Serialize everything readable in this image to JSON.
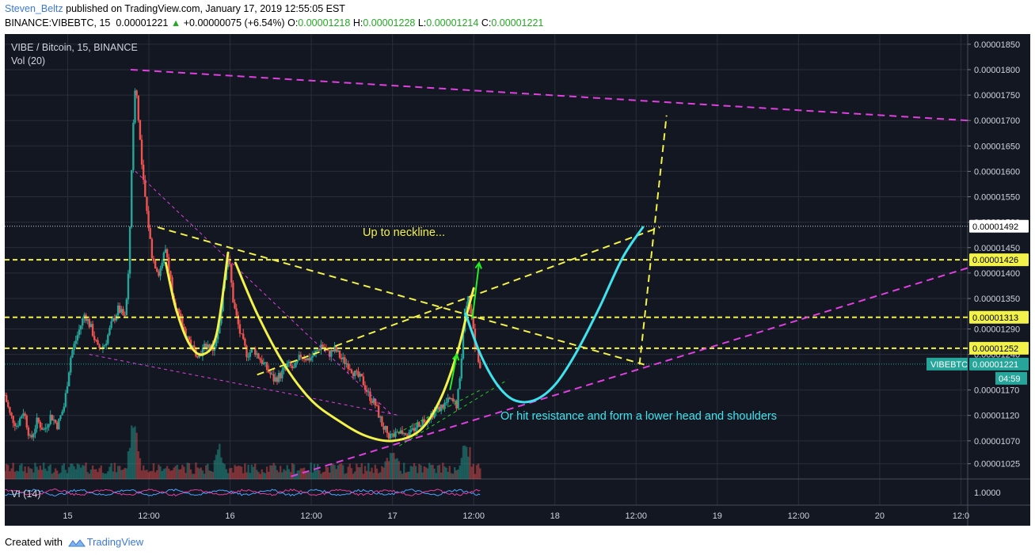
{
  "header": {
    "author": "Steven_Beltz",
    "published_text": "published on TradingView.com, January 17, 2019 12:55:05 EST"
  },
  "quote": {
    "symbol": "BINANCE:VIBEBTC, 15",
    "last": "0.00001221",
    "arrow": "▲",
    "change": "+0.00000075 (+6.54%)",
    "o_label": "O:",
    "o": "0.00001218",
    "h_label": "H:",
    "h": "0.00001228",
    "l_label": "L:",
    "l": "0.00001214",
    "c_label": "C:",
    "c": "0.00001221"
  },
  "legend": {
    "symbol_line": "VIBE / Bitcoin, 15, BINANCE",
    "volume": "Vol (20)",
    "indicator": "VI (14)",
    "indicator_value": "1.0000"
  },
  "annotations": {
    "neckline": "Up to neckline...",
    "resistance": "Or hit resistance and form a lower head and shoulders"
  },
  "footer": {
    "created_with": "Created with",
    "brand": "TradingView"
  },
  "colors": {
    "background": "#131722",
    "grid": "#2a2e39",
    "up": "#26a69a",
    "down": "#ef5350",
    "yellow": "#f2f24a",
    "magenta": "#e040e0",
    "cyan": "#3fe3ee",
    "green_arrow": "#22ee22"
  },
  "chart_data": {
    "type": "candlestick",
    "price_axis": {
      "range": [
        9.95e-06,
        1.87e-05
      ],
      "ticks": [
        "0.00001850",
        "0.00001800",
        "0.00001750",
        "0.00001700",
        "0.00001650",
        "0.00001600",
        "0.00001550",
        "0.00001500",
        "0.00001450",
        "0.00001400",
        "0.00001350",
        "0.00001290",
        "0.00001240",
        "0.00001170",
        "0.00001120",
        "0.00001070",
        "0.00001025"
      ],
      "tick_values": [
        1.85e-05,
        1.8e-05,
        1.75e-05,
        1.7e-05,
        1.65e-05,
        1.6e-05,
        1.55e-05,
        1.5e-05,
        1.45e-05,
        1.4e-05,
        1.35e-05,
        1.29e-05,
        1.24e-05,
        1.17e-05,
        1.12e-05,
        1.07e-05,
        1.025e-05
      ]
    },
    "time_axis": {
      "ticks": [
        "15",
        "12:00",
        "16",
        "12:00",
        "17",
        "12:00",
        "18",
        "12:00",
        "19",
        "12:00",
        "20",
        "12:0"
      ],
      "tick_times": [
        0,
        12,
        24,
        36,
        48,
        60,
        72,
        84,
        96,
        108,
        120,
        132
      ],
      "range": [
        -9.3,
        133
      ]
    },
    "price_labels": [
      {
        "text": "0.00001492",
        "value": 1.492e-05,
        "style": "white"
      },
      {
        "text": "0.00001426",
        "value": 1.426e-05,
        "style": "yellow"
      },
      {
        "text": "0.00001313",
        "value": 1.313e-05,
        "style": "yellow"
      },
      {
        "text": "0.00001252",
        "value": 1.252e-05,
        "style": "yellow"
      },
      {
        "text": "0.00001221",
        "value": 1.221e-05,
        "style": "teal",
        "tag": "VIBEBTC",
        "countdown": "04:59"
      }
    ],
    "horizontal_lines": [
      {
        "value": 1.492e-05,
        "color": "#d1d4dc",
        "dash": "dotted"
      },
      {
        "value": 1.426e-05,
        "color": "#f2f24a",
        "dash": "dashed"
      },
      {
        "value": 1.313e-05,
        "color": "#f2f24a",
        "dash": "dashed"
      },
      {
        "value": 1.252e-05,
        "color": "#f2f24a",
        "dash": "dashed"
      },
      {
        "value": 1.221e-05,
        "color": "#26a69a",
        "dash": "dotted"
      }
    ],
    "price_path": [
      [
        -9.3,
        1.16e-05
      ],
      [
        -8.5,
        1.12e-05
      ],
      [
        -7.5,
        1.1e-05
      ],
      [
        -6.5,
        1.13e-05
      ],
      [
        -5.5,
        1.07e-05
      ],
      [
        -4.5,
        1.11e-05
      ],
      [
        -3.5,
        1.09e-05
      ],
      [
        -2.5,
        1.12e-05
      ],
      [
        -1.5,
        1.1e-05
      ],
      [
        -0.5,
        1.14e-05
      ],
      [
        0.5,
        1.24e-05
      ],
      [
        1.5,
        1.28e-05
      ],
      [
        2.5,
        1.32e-05
      ],
      [
        3.5,
        1.29e-05
      ],
      [
        4.5,
        1.25e-05
      ],
      [
        5.5,
        1.26e-05
      ],
      [
        6.5,
        1.3e-05
      ],
      [
        7.5,
        1.33e-05
      ],
      [
        8.5,
        1.31e-05
      ],
      [
        9,
        1.4e-05
      ],
      [
        9.5,
        1.63e-05
      ],
      [
        10,
        1.78e-05
      ],
      [
        10.5,
        1.7e-05
      ],
      [
        11,
        1.6e-05
      ],
      [
        11.7,
        1.52e-05
      ],
      [
        12.5,
        1.43e-05
      ],
      [
        13.5,
        1.4e-05
      ],
      [
        14.5,
        1.45e-05
      ],
      [
        15.5,
        1.36e-05
      ],
      [
        16.5,
        1.31e-05
      ],
      [
        17.5,
        1.28e-05
      ],
      [
        18.5,
        1.25e-05
      ],
      [
        19.5,
        1.24e-05
      ],
      [
        20.5,
        1.26e-05
      ],
      [
        21.5,
        1.25e-05
      ],
      [
        22.5,
        1.3e-05
      ],
      [
        23,
        1.38e-05
      ],
      [
        23.8,
        1.43e-05
      ],
      [
        24.5,
        1.34e-05
      ],
      [
        25.5,
        1.28e-05
      ],
      [
        26.5,
        1.24e-05
      ],
      [
        27.5,
        1.25e-05
      ],
      [
        28.5,
        1.23e-05
      ],
      [
        29.5,
        1.21e-05
      ],
      [
        30.5,
        1.19e-05
      ],
      [
        31.5,
        1.2e-05
      ],
      [
        32.5,
        1.22e-05
      ],
      [
        33.5,
        1.21e-05
      ],
      [
        34.5,
        1.24e-05
      ],
      [
        35.5,
        1.23e-05
      ],
      [
        36.5,
        1.24e-05
      ],
      [
        37.5,
        1.26e-05
      ],
      [
        38.5,
        1.24e-05
      ],
      [
        39.5,
        1.25e-05
      ],
      [
        40.5,
        1.23e-05
      ],
      [
        41.5,
        1.22e-05
      ],
      [
        42.5,
        1.2e-05
      ],
      [
        43.5,
        1.19e-05
      ],
      [
        44.5,
        1.16e-05
      ],
      [
        45.5,
        1.14e-05
      ],
      [
        46.5,
        1.1e-05
      ],
      [
        47.5,
        1.08e-05
      ],
      [
        48.5,
        1.08e-05
      ],
      [
        49.5,
        1.09e-05
      ],
      [
        50.5,
        1.08e-05
      ],
      [
        51.5,
        1.1e-05
      ],
      [
        52.5,
        1.11e-05
      ],
      [
        53.5,
        1.12e-05
      ],
      [
        54.5,
        1.13e-05
      ],
      [
        55.5,
        1.14e-05
      ],
      [
        56.5,
        1.15e-05
      ],
      [
        57.5,
        1.14e-05
      ],
      [
        58,
        1.2e-05
      ],
      [
        58.6,
        1.32e-05
      ],
      [
        59.2,
        1.36e-05
      ],
      [
        59.8,
        1.3e-05
      ],
      [
        60.3,
        1.25e-05
      ],
      [
        61,
        1.22e-05
      ]
    ],
    "volume": {
      "relative_max": 1,
      "spikes": [
        {
          "t": 9.8,
          "value": 1.0
        },
        {
          "t": 58.8,
          "value": 0.55
        },
        {
          "t": 22.5,
          "value": 0.35
        },
        {
          "t": 48,
          "value": 0.3
        }
      ]
    },
    "drawings": [
      {
        "kind": "trendline",
        "color": "#e040e0",
        "dash": "long",
        "points": [
          [
            9.3,
            1.8e-05
          ],
          [
            133,
            1.7e-05
          ]
        ]
      },
      {
        "kind": "trendline",
        "color": "#e040e0",
        "dash": "long",
        "points": [
          [
            33,
            1e-05
          ],
          [
            133,
            1.41e-05
          ]
        ]
      },
      {
        "kind": "trendline",
        "color": "#e040e0",
        "dash": "short",
        "width": 1,
        "points": [
          [
            10,
            1.6e-05
          ],
          [
            48,
            1.12e-05
          ]
        ]
      },
      {
        "kind": "trendline",
        "color": "#e040e0",
        "dash": "short",
        "width": 1,
        "points": [
          [
            3.2,
            1.24e-05
          ],
          [
            49,
            1.12e-05
          ]
        ]
      },
      {
        "kind": "trendline",
        "color": "#f2f24a",
        "dash": "long",
        "points": [
          [
            13.3,
            1.49e-05
          ],
          [
            85.2,
            1.22e-05
          ]
        ]
      },
      {
        "kind": "trendline",
        "color": "#f2f24a",
        "dash": "long",
        "points": [
          [
            28,
            1.2e-05
          ],
          [
            87.5,
            1.49e-05
          ]
        ]
      },
      {
        "kind": "trendline",
        "color": "#f2f24a",
        "dash": "long",
        "points": [
          [
            84.5,
            1.22e-05
          ],
          [
            88.5,
            1.71e-05
          ]
        ]
      },
      {
        "kind": "trendline",
        "color": "#22cc22",
        "dash": "short",
        "width": 1,
        "points": [
          [
            48,
            1.08e-05
          ],
          [
            61,
            1.17e-05
          ]
        ]
      },
      {
        "kind": "trendline",
        "color": "#22cc22",
        "dash": "short",
        "width": 1,
        "points": [
          [
            49,
            1.06e-05
          ],
          [
            65,
            1.19e-05
          ]
        ]
      },
      {
        "kind": "curve",
        "color": "#f2f24a",
        "points": [
          [
            14.5,
            1.42e-05
          ],
          [
            16,
            1.33e-05
          ],
          [
            18,
            1.26e-05
          ],
          [
            20,
            1.24e-05
          ],
          [
            22,
            1.28e-05
          ],
          [
            23.7,
            1.44e-05
          ]
        ]
      },
      {
        "kind": "curve",
        "color": "#f2f24a",
        "points": [
          [
            24.8,
            1.42e-05
          ],
          [
            28,
            1.32e-05
          ],
          [
            32,
            1.22e-05
          ],
          [
            36,
            1.15e-05
          ],
          [
            40,
            1.11e-05
          ],
          [
            44,
            1.08e-05
          ],
          [
            48,
            1.07e-05
          ],
          [
            52,
            1.09e-05
          ],
          [
            55,
            1.15e-05
          ],
          [
            57.5,
            1.24e-05
          ],
          [
            59,
            1.32e-05
          ],
          [
            60,
            1.37e-05
          ]
        ]
      },
      {
        "kind": "curve",
        "color": "#3fe3ee",
        "points": [
          [
            58.8,
            1.32e-05
          ],
          [
            61,
            1.24e-05
          ],
          [
            63.5,
            1.18e-05
          ],
          [
            66,
            1.15e-05
          ],
          [
            69,
            1.15e-05
          ],
          [
            72,
            1.18e-05
          ],
          [
            75,
            1.24e-05
          ],
          [
            78.5,
            1.33e-05
          ],
          [
            82,
            1.43e-05
          ],
          [
            85,
            1.49e-05
          ]
        ]
      },
      {
        "kind": "arrow",
        "color": "#22ee22",
        "points": [
          [
            56.5,
            1.17e-05
          ],
          [
            57.5,
            1.24e-05
          ]
        ]
      },
      {
        "kind": "arrow",
        "color": "#22ee22",
        "points": [
          [
            59.8,
            1.31e-05
          ],
          [
            60.8,
            1.42e-05
          ]
        ]
      }
    ]
  }
}
